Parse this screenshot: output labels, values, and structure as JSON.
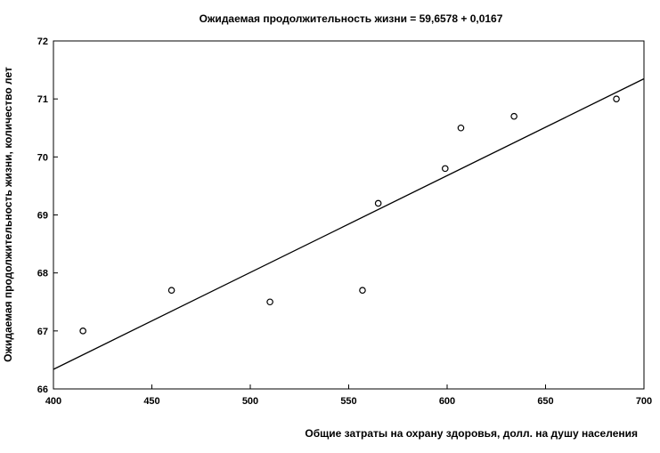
{
  "chart_data": {
    "type": "scatter",
    "title": "Ожидаемая продолжительность жизни = 59,6578 + 0,0167",
    "xlabel": "Общие затраты на охрану здоровья, долл. на душу населения",
    "ylabel": "Ожидаемая продолжительность жизни, количество лет",
    "xlim": [
      400,
      700
    ],
    "ylim": [
      66,
      72
    ],
    "xticks": [
      400,
      450,
      500,
      550,
      600,
      650,
      700
    ],
    "yticks": [
      66,
      67,
      68,
      69,
      70,
      71,
      72
    ],
    "grid": false,
    "points": [
      {
        "x": 415,
        "y": 67.0
      },
      {
        "x": 460,
        "y": 67.7
      },
      {
        "x": 510,
        "y": 67.5
      },
      {
        "x": 557,
        "y": 67.7
      },
      {
        "x": 565,
        "y": 69.2
      },
      {
        "x": 599,
        "y": 69.8
      },
      {
        "x": 607,
        "y": 70.5
      },
      {
        "x": 634,
        "y": 70.7
      },
      {
        "x": 686,
        "y": 71.0
      }
    ],
    "regression": {
      "intercept": 59.6578,
      "slope": 0.0167
    }
  }
}
